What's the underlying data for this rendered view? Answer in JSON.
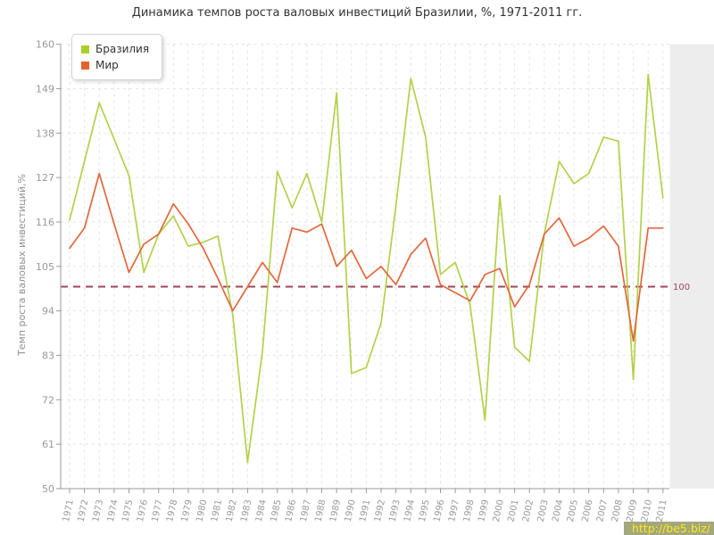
{
  "title": "Динамика темпов роста валовых инвестиций Бразилии, %, 1971-2011 гг.",
  "legend": {
    "items": [
      {
        "label": "Бразилия",
        "color": "#a9ce2d"
      },
      {
        "label": "Мир",
        "color": "#e2632e"
      }
    ]
  },
  "watermark": {
    "text": "http://be5.biz/",
    "bg": "#a2a87c",
    "fg": "#ffe81a"
  },
  "chart_data": {
    "type": "line",
    "title": "Динамика темпов роста валовых инвестиций Бразилии, %, 1971-2011 гг.",
    "xlabel": "",
    "ylabel": "Темп роста валовых инвестиций,%",
    "ylim": [
      50,
      160
    ],
    "yticks": [
      50,
      61,
      72,
      83,
      94,
      105,
      116,
      127,
      138,
      149,
      160
    ],
    "grid": true,
    "legend_position": "top-left",
    "reference_line": {
      "value": 100,
      "label": "100",
      "color": "#a04458"
    },
    "x": [
      1971,
      1972,
      1973,
      1974,
      1975,
      1976,
      1977,
      1978,
      1979,
      1980,
      1981,
      1982,
      1983,
      1984,
      1985,
      1986,
      1987,
      1988,
      1989,
      1990,
      1991,
      1992,
      1993,
      1994,
      1995,
      1996,
      1997,
      1998,
      1999,
      2000,
      2001,
      2002,
      2003,
      2004,
      2005,
      2006,
      2007,
      2008,
      2009,
      2010,
      2011
    ],
    "series": [
      {
        "name": "Бразилия",
        "color": "#b3d14a",
        "values": [
          116.5,
          131,
          145.5,
          136.5,
          127.5,
          103.5,
          113,
          117.5,
          110,
          111,
          112.5,
          93,
          56.5,
          84,
          128.5,
          119.5,
          128,
          116,
          148,
          78.5,
          80,
          91,
          120,
          151.5,
          137,
          103,
          106,
          95.5,
          67,
          122.5,
          85,
          81.5,
          113,
          131,
          125.5,
          128,
          137,
          136,
          77,
          152.5,
          122
        ]
      },
      {
        "name": "Мир",
        "color": "#e2683c",
        "values": [
          109.5,
          114.5,
          128,
          115.5,
          103.5,
          110.5,
          113,
          120.5,
          115.5,
          109.5,
          102,
          94,
          100,
          106,
          101,
          114.5,
          113.5,
          115.5,
          105,
          109,
          102,
          105,
          100.5,
          108,
          112,
          100.5,
          98.5,
          96.5,
          103,
          104.5,
          95,
          100.5,
          113,
          117,
          110,
          112,
          115,
          110,
          86.5,
          114.5,
          114.5
        ]
      }
    ],
    "axis_color": "#9a9a9a",
    "grid_color": "#e3e3e3",
    "tick_label_color": "#999999"
  }
}
